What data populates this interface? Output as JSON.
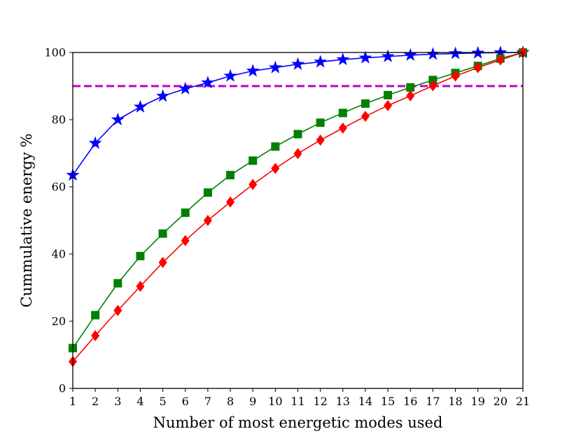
{
  "chart_data": {
    "type": "line",
    "title": "",
    "xlabel": "Number of most energetic modes used",
    "ylabel": "Cummulative energy %",
    "x": [
      1,
      2,
      3,
      4,
      5,
      6,
      7,
      8,
      9,
      10,
      11,
      12,
      13,
      14,
      15,
      16,
      17,
      18,
      19,
      20,
      21
    ],
    "xlim": [
      1,
      21
    ],
    "ylim": [
      0,
      100
    ],
    "xticks": [
      "1",
      "2",
      "3",
      "4",
      "5",
      "6",
      "7",
      "8",
      "9",
      "10",
      "11",
      "12",
      "13",
      "14",
      "15",
      "16",
      "17",
      "18",
      "19",
      "20",
      "21"
    ],
    "yticks": [
      "0",
      "20",
      "40",
      "60",
      "80",
      "100"
    ],
    "grid": false,
    "series": [
      {
        "color": "#0000ff",
        "marker": "star",
        "values": [
          63.5,
          73.0,
          80.0,
          83.8,
          87.0,
          89.2,
          91.0,
          93.0,
          94.5,
          95.5,
          96.5,
          97.2,
          97.9,
          98.4,
          98.8,
          99.2,
          99.5,
          99.7,
          99.85,
          99.95,
          100.0
        ]
      },
      {
        "color": "#008000",
        "marker": "square",
        "values": [
          12.0,
          21.8,
          31.3,
          39.4,
          46.1,
          52.3,
          58.3,
          63.5,
          67.8,
          72.0,
          75.7,
          79.1,
          82.0,
          84.8,
          87.3,
          89.6,
          91.8,
          93.9,
          96.0,
          98.2,
          100.0
        ]
      },
      {
        "color": "#ff0000",
        "marker": "diamond",
        "values": [
          8.0,
          15.7,
          23.2,
          30.4,
          37.5,
          44.0,
          50.0,
          55.5,
          60.7,
          65.5,
          69.9,
          73.9,
          77.5,
          81.0,
          84.2,
          87.1,
          90.1,
          93.0,
          95.5,
          97.8,
          100.0
        ]
      }
    ],
    "reference_line": {
      "y": 90,
      "color": "#bf00bf",
      "style": "dashed"
    }
  }
}
